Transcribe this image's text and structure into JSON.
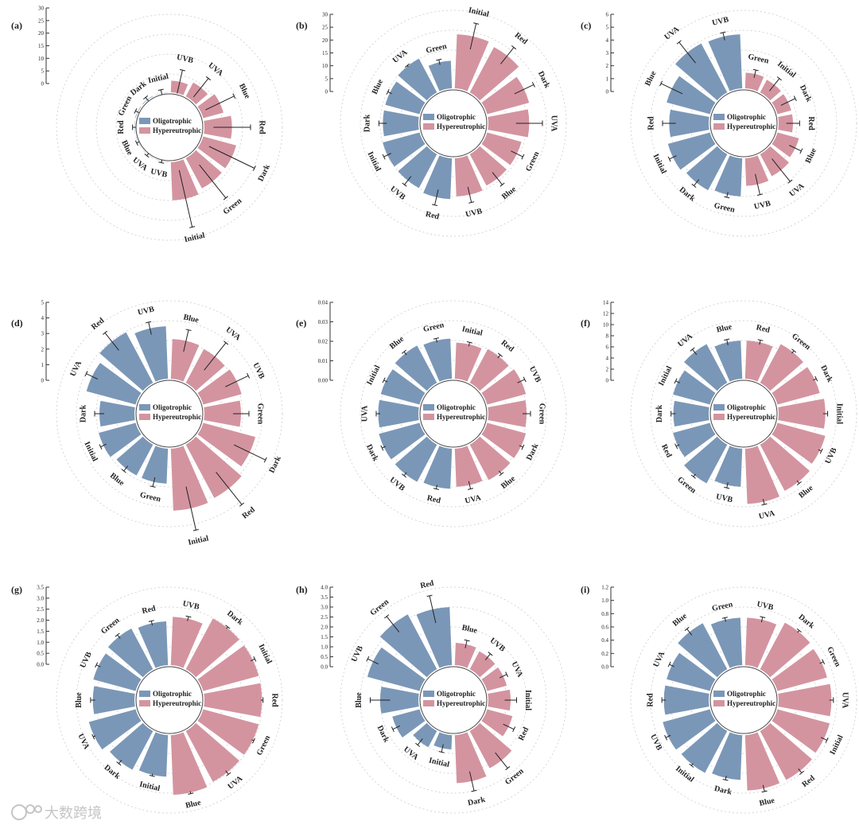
{
  "legend": {
    "oligotrophic": "Oligotrophic",
    "hypereutrophic": "Hypereutrophic"
  },
  "colors": {
    "oligotrophic": "#7b97b7",
    "hypereutrophic": "#d394a0",
    "axis": "#333333",
    "grid": "#cccccc"
  },
  "watermark": {
    "text": "大数跨境"
  },
  "chart_data": [
    {
      "type": "radial-bar",
      "panel_label": "(a)",
      "yticks": [
        "0",
        "5",
        "10",
        "15",
        "20",
        "25",
        "30"
      ],
      "ylim": [
        0,
        30
      ],
      "legend_labels": [
        "Oligotrophic",
        "Hypereutrophic"
      ],
      "series": [
        {
          "name": "Oligotrophic",
          "categories": [
            "Initial",
            "Dark",
            "Green",
            "Red",
            "Blue",
            "UVA",
            "UVB"
          ],
          "values": [
            0.7,
            0.8,
            0.8,
            0.5,
            0.5,
            0.5,
            0.5
          ],
          "errors": [
            1.2,
            1.0,
            0.8,
            0.8,
            0.6,
            0.6,
            0.6
          ]
        },
        {
          "name": "Hypereutrophic",
          "categories": [
            "UVB",
            "UVA",
            "Blue",
            "Red",
            "Dark",
            "Green",
            "Initial"
          ],
          "values": [
            5,
            6.5,
            8.5,
            11,
            13.5,
            13.5,
            15
          ],
          "errors": [
            4.5,
            4.5,
            6,
            7,
            9.5,
            8,
            11
          ]
        }
      ]
    },
    {
      "type": "radial-bar",
      "panel_label": "(b)",
      "yticks": [
        "0",
        "5",
        "10",
        "15",
        "20",
        "25",
        "30"
      ],
      "ylim": [
        0,
        30
      ],
      "legend_labels": [
        "Oligotrophic",
        "Hypereutrophic"
      ],
      "series": [
        {
          "name": "Oligotrophic",
          "categories": [
            "Green",
            "UVA",
            "Blue",
            "Dark",
            "Initial",
            "UVB",
            "Red"
          ],
          "values": [
            11,
            15,
            14,
            14,
            15,
            15,
            16
          ],
          "errors": [
            1.0,
            0.3,
            0.8,
            1.5,
            1.5,
            2.0,
            3.0
          ]
        },
        {
          "name": "Hypereutrophic",
          "categories": [
            "Initial",
            "Red",
            "Dark",
            "UVA",
            "Green",
            "Blue",
            "UVB"
          ],
          "values": [
            21,
            20,
            17,
            16,
            14,
            14,
            15
          ],
          "errors": [
            5.0,
            4.0,
            4.0,
            5.0,
            2.5,
            3.0,
            3.0
          ]
        }
      ]
    },
    {
      "type": "radial-bar",
      "panel_label": "(c)",
      "yticks": [
        "0",
        "1",
        "2",
        "3",
        "4",
        "5",
        "6"
      ],
      "ylim": [
        0,
        6
      ],
      "legend_labels": [
        "Oligotrophic",
        "Hypereutrophic"
      ],
      "series": [
        {
          "name": "Oligotrophic",
          "categories": [
            "UVB",
            "UVA",
            "Blue",
            "Red",
            "Initial",
            "Dark",
            "Green"
          ],
          "values": [
            4.2,
            4.3,
            3.5,
            3.1,
            3.4,
            3.2,
            3.0
          ],
          "errors": [
            0.3,
            1.0,
            0.9,
            0.5,
            0.3,
            0.3,
            0.2
          ]
        },
        {
          "name": "Hypereutrophic",
          "categories": [
            "Green",
            "Initial",
            "Dark",
            "Red",
            "Blue",
            "UVA",
            "UVB"
          ],
          "values": [
            1.3,
            1.2,
            1.2,
            1.2,
            1.8,
            2.0,
            2.2
          ],
          "errors": [
            0.3,
            0.6,
            0.6,
            0.5,
            0.5,
            1.1,
            0.8
          ]
        }
      ]
    },
    {
      "type": "radial-bar",
      "panel_label": "(d)",
      "yticks": [
        "0",
        "1",
        "2",
        "3",
        "4",
        "5"
      ],
      "ylim": [
        0,
        5
      ],
      "legend_labels": [
        "Oligotrophic",
        "Hypereutrophic"
      ],
      "series": [
        {
          "name": "Oligotrophic",
          "categories": [
            "UVB",
            "Red",
            "UVA",
            "Dark",
            "Initial",
            "Blue",
            "Green"
          ],
          "values": [
            3.4,
            3.7,
            3.3,
            2.3,
            2.5,
            2.3,
            2.3
          ],
          "errors": [
            0.4,
            0.7,
            0.4,
            0.3,
            0.2,
            0.2,
            0.3
          ]
        },
        {
          "name": "Hypereutrophic",
          "categories": [
            "Blue",
            "UVA",
            "UVB",
            "Green",
            "Dark",
            "Red",
            "Initial"
          ],
          "values": [
            2.6,
            2.5,
            2.6,
            2.4,
            3.5,
            3.9,
            4.0
          ],
          "errors": [
            0.7,
            1.1,
            0.8,
            0.5,
            1.1,
            1.3,
            1.4
          ]
        }
      ]
    },
    {
      "type": "radial-bar",
      "panel_label": "(e)",
      "yticks": [
        "0.00",
        "0.01",
        "0.02",
        "0.03",
        "0.04"
      ],
      "ylim": [
        0,
        0.04
      ],
      "legend_labels": [
        "Oligotrophic",
        "Hypereutrophic"
      ],
      "series": [
        {
          "name": "Oligotrophic",
          "categories": [
            "Green",
            "Blue",
            "Initial",
            "UVA",
            "Dark",
            "UVB",
            "Red"
          ],
          "values": [
            0.021,
            0.022,
            0.021,
            0.021,
            0.022,
            0.022,
            0.021
          ],
          "errors": [
            0.001,
            0.001,
            0.001,
            0.001,
            0.001,
            0.001,
            0.001
          ]
        },
        {
          "name": "Hypereutrophic",
          "categories": [
            "Initial",
            "Red",
            "UVB",
            "Green",
            "Dark",
            "Blue",
            "UVA"
          ],
          "values": [
            0.019,
            0.02,
            0.021,
            0.02,
            0.021,
            0.021,
            0.02
          ],
          "errors": [
            0.001,
            0.001,
            0.002,
            0.002,
            0.001,
            0.001,
            0.002
          ]
        }
      ]
    },
    {
      "type": "radial-bar",
      "panel_label": "(f)",
      "yticks": [
        "0",
        "2",
        "4",
        "6",
        "8",
        "10",
        "12",
        "14"
      ],
      "ylim": [
        0,
        14
      ],
      "legend_labels": [
        "Oligotrophic",
        "Hypereutrophic"
      ],
      "series": [
        {
          "name": "Oligotrophic",
          "categories": [
            "Blue",
            "UVA",
            "Initial",
            "Dark",
            "Red",
            "Green",
            "UVB"
          ],
          "values": [
            7.0,
            8.0,
            7.0,
            6.5,
            7.0,
            8.0,
            7.0
          ],
          "errors": [
            0.5,
            0.6,
            0.4,
            0.4,
            0.3,
            0.3,
            0.5
          ]
        },
        {
          "name": "Hypereutrophic",
          "categories": [
            "Red",
            "Green",
            "Dark",
            "Initial",
            "UVB",
            "Blue",
            "UVA"
          ],
          "values": [
            7.0,
            8.0,
            8.0,
            8.5,
            9.0,
            9.5,
            10.0
          ],
          "errors": [
            0.4,
            0.3,
            0.3,
            0.4,
            0.3,
            0.3,
            0.5
          ]
        }
      ]
    },
    {
      "type": "radial-bar",
      "panel_label": "(g)",
      "yticks": [
        "0.0",
        "0.5",
        "1.0",
        "1.5",
        "2.0",
        "2.5",
        "3.0",
        "3.5"
      ],
      "ylim": [
        0,
        3.5
      ],
      "legend_labels": [
        "Oligotrophic",
        "Hypereutrophic"
      ],
      "series": [
        {
          "name": "Oligotrophic",
          "categories": [
            "Red",
            "Green",
            "UVB",
            "Blue",
            "UVA",
            "Dark",
            "Initial"
          ],
          "values": [
            2.0,
            2.1,
            2.0,
            1.9,
            2.2,
            2.0,
            1.9
          ],
          "errors": [
            0.1,
            0.1,
            0.1,
            0.1,
            0.05,
            0.1,
            0.05
          ]
        },
        {
          "name": "Hypereutrophic",
          "categories": [
            "UVB",
            "Dark",
            "Initial",
            "Red",
            "Green",
            "UVA",
            "Blue"
          ],
          "values": [
            2.2,
            2.6,
            2.6,
            2.6,
            2.6,
            2.6,
            2.7
          ],
          "errors": [
            0.1,
            0.05,
            0.1,
            0.05,
            0.05,
            0.1,
            0.05
          ]
        }
      ]
    },
    {
      "type": "radial-bar",
      "panel_label": "(h)",
      "yticks": [
        "0.0",
        "0.5",
        "1.0",
        "1.5",
        "2.0",
        "2.5",
        "3.0",
        "3.5",
        "4.0"
      ],
      "ylim": [
        0,
        4.0
      ],
      "legend_labels": [
        "Oligotrophic",
        "Hypereutrophic"
      ],
      "series": [
        {
          "name": "Oligotrophic",
          "categories": [
            "Red",
            "Green",
            "UVB",
            "Blue",
            "Dark",
            "UVA",
            "Initial"
          ],
          "values": [
            3.0,
            3.2,
            2.8,
            2.0,
            1.5,
            1.0,
            0.8
          ],
          "errors": [
            0.7,
            0.5,
            0.3,
            0.5,
            0.2,
            0.2,
            0.2
          ]
        },
        {
          "name": "Hypereutrophic",
          "categories": [
            "Blue",
            "UVB",
            "UVA",
            "Initial",
            "Red",
            "Green",
            "Dark"
          ],
          "values": [
            1.2,
            1.1,
            1.1,
            1.2,
            1.4,
            2.2,
            2.5
          ],
          "errors": [
            0.2,
            0.2,
            0.2,
            0.3,
            0.3,
            0.5,
            0.5
          ]
        }
      ]
    },
    {
      "type": "radial-bar",
      "panel_label": "(i)",
      "yticks": [
        "0.0",
        "0.2",
        "0.4",
        "0.6",
        "0.8",
        "1.0",
        "1.2"
      ],
      "ylim": [
        0,
        1.2
      ],
      "legend_labels": [
        "Oligotrophic",
        "Hypereutrophic"
      ],
      "series": [
        {
          "name": "Oligotrophic",
          "categories": [
            "Green",
            "Blue",
            "UVA",
            "Red",
            "UVB",
            "Initial",
            "Dark"
          ],
          "values": [
            0.74,
            0.81,
            0.7,
            0.7,
            0.76,
            0.74,
            0.7
          ],
          "errors": [
            0.03,
            0.06,
            0.04,
            0.03,
            0.04,
            0.02,
            0.03
          ]
        },
        {
          "name": "Hypereutrophic",
          "categories": [
            "UVB",
            "Dark",
            "Green",
            "UVA",
            "Initial",
            "Red",
            "Blue"
          ],
          "values": [
            0.74,
            0.82,
            0.8,
            0.82,
            0.84,
            0.86,
            0.86
          ],
          "errors": [
            0.04,
            0.02,
            0.03,
            0.03,
            0.05,
            0.04,
            0.05
          ]
        }
      ]
    }
  ]
}
